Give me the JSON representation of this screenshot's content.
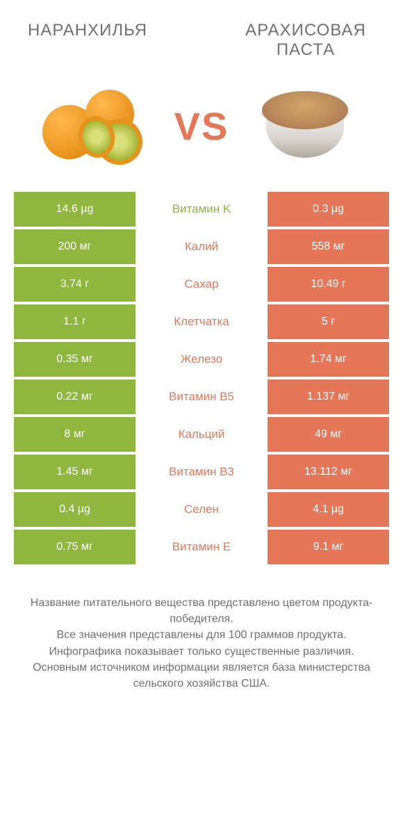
{
  "colors": {
    "green": "#8fb73e",
    "orange": "#e57758",
    "mid_text": "#707070"
  },
  "header": {
    "left_title": "Наранхилья",
    "right_title": "Арахисовая паста",
    "vs": "VS"
  },
  "title_fontsize": 24,
  "vs_fontsize": 56,
  "row_fontsize": 16,
  "footer_fontsize": 16,
  "rows": [
    {
      "left": "14.6 µg",
      "mid": "Витамин K",
      "right": "0.3 µg",
      "winner": "left"
    },
    {
      "left": "200 мг",
      "mid": "Калий",
      "right": "558 мг",
      "winner": "right"
    },
    {
      "left": "3.74 г",
      "mid": "Сахар",
      "right": "10.49 г",
      "winner": "right"
    },
    {
      "left": "1.1 г",
      "mid": "Клетчатка",
      "right": "5 г",
      "winner": "right"
    },
    {
      "left": "0.35 мг",
      "mid": "Железо",
      "right": "1.74 мг",
      "winner": "right"
    },
    {
      "left": "0.22 мг",
      "mid": "Витамин B5",
      "right": "1.137 мг",
      "winner": "right"
    },
    {
      "left": "8 мг",
      "mid": "Кальций",
      "right": "49 мг",
      "winner": "right"
    },
    {
      "left": "1.45 мг",
      "mid": "Витамин B3",
      "right": "13.112 мг",
      "winner": "right"
    },
    {
      "left": "0.4 µg",
      "mid": "Селен",
      "right": "4.1 µg",
      "winner": "right"
    },
    {
      "left": "0.75 мг",
      "mid": "Витамин E",
      "right": "9.1 мг",
      "winner": "right"
    }
  ],
  "footer_lines": [
    "Название питательного вещества представлено цветом продукта-победителя.",
    "Все значения представлены для 100 граммов продукта.",
    "Инфографика показывает только существенные различия.",
    "Основным источником информации является база министерства сельского хозяйства США."
  ]
}
